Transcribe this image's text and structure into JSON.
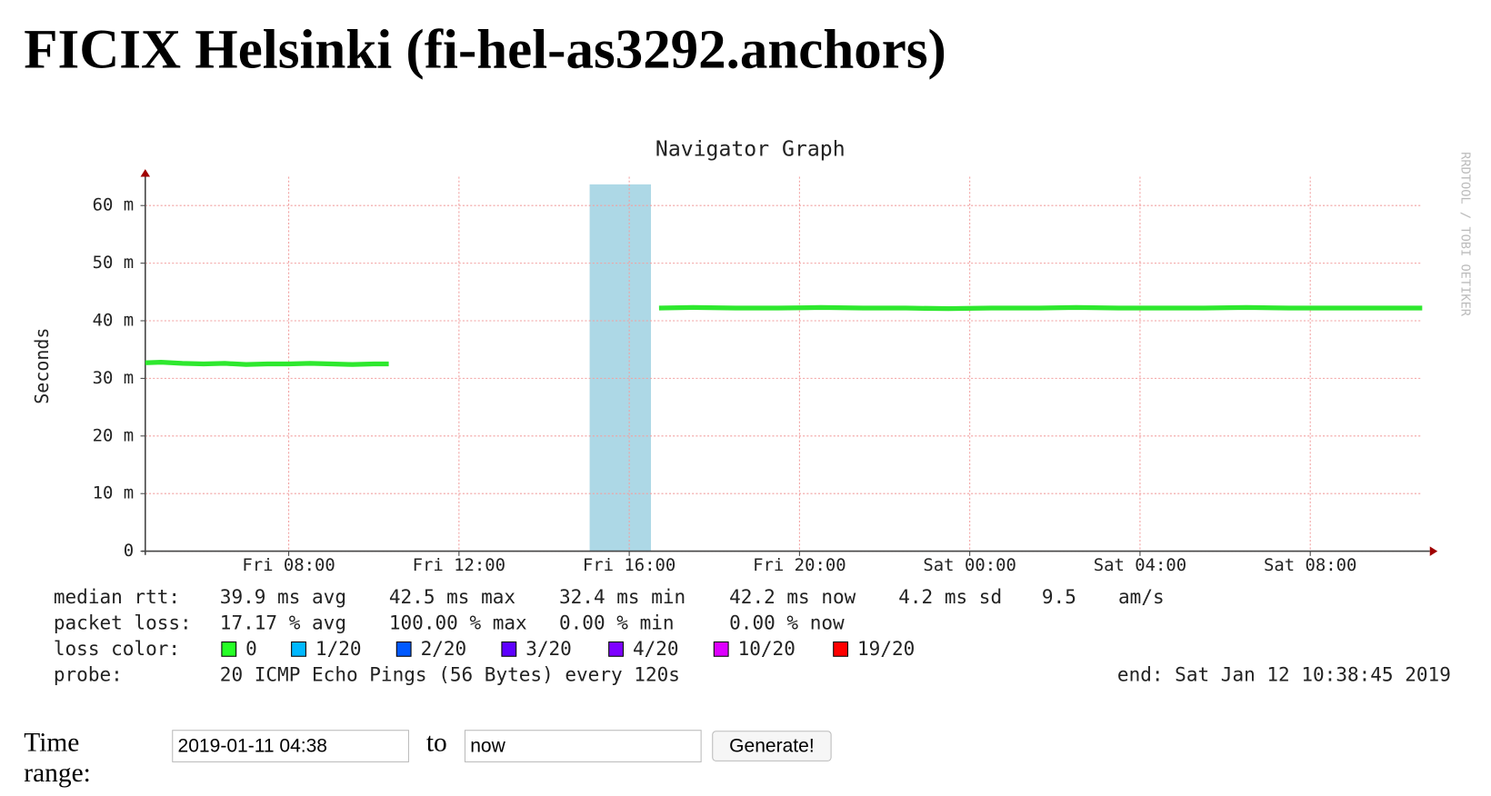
{
  "header": {
    "title": "FICIX Helsinki (fi-hel-as3292.anchors)"
  },
  "chart_data": {
    "type": "line",
    "title": "Navigator Graph",
    "y_label": "Seconds",
    "watermark": "RRDTOOL / TOBI OETIKER",
    "xlim": [
      4.63,
      34.63
    ],
    "xticks": [
      {
        "value": 8,
        "label": "Fri 08:00"
      },
      {
        "value": 12,
        "label": "Fri 12:00"
      },
      {
        "value": 16,
        "label": "Fri 16:00"
      },
      {
        "value": 20,
        "label": "Fri 20:00"
      },
      {
        "value": 24,
        "label": "Sat 00:00"
      },
      {
        "value": 28,
        "label": "Sat 04:00"
      },
      {
        "value": 32,
        "label": "Sat 08:00"
      }
    ],
    "ylim": [
      0,
      0.065
    ],
    "yticks": [
      0,
      {
        "value": 0.01,
        "label": "10 m"
      },
      {
        "value": 0.02,
        "label": "20 m"
      },
      {
        "value": 0.03,
        "label": "30 m"
      },
      {
        "value": 0.04,
        "label": "40 m"
      },
      {
        "value": 0.05,
        "label": "50 m"
      },
      {
        "value": 0.06,
        "label": "60 m"
      }
    ],
    "grid": true,
    "shaded": {
      "x": [
        15.07,
        16.51
      ],
      "color": "#add8e6"
    },
    "x": [
      4.63,
      5,
      5.5,
      6,
      6.5,
      7,
      7.5,
      8,
      8.5,
      9,
      9.5,
      10,
      10.35,
      13,
      16.7,
      17.5,
      18.5,
      19.5,
      20.5,
      21.5,
      22.5,
      23.5,
      24.5,
      25.5,
      26.5,
      27.5,
      28.5,
      29.5,
      30.5,
      31.5,
      32.5,
      33.5,
      34.63
    ],
    "series": [
      {
        "name": "median rtt",
        "color": "#2ee82e",
        "values": [
          0.0327,
          0.0328,
          0.0326,
          0.0325,
          0.0326,
          0.0324,
          0.0325,
          0.0325,
          0.0326,
          0.0325,
          0.0324,
          0.0325,
          0.0325,
          null,
          0.0422,
          0.0423,
          0.0422,
          0.0422,
          0.0423,
          0.0422,
          0.0422,
          0.0421,
          0.0422,
          0.0422,
          0.0423,
          0.0422,
          0.0422,
          0.0422,
          0.0423,
          0.0422,
          0.0422,
          0.0422,
          0.0422
        ]
      }
    ]
  },
  "legend": {
    "rows": [
      [
        "median rtt:",
        "39.9 ms avg",
        "42.5 ms max",
        "32.4 ms min",
        "42.2 ms now",
        "4.2 ms sd",
        "9.5",
        "am/s"
      ],
      [
        "packet loss:",
        "17.17 % avg",
        "100.00 % max",
        "0.00 % min",
        "0.00 % now"
      ]
    ],
    "loss_label": "loss color:",
    "loss_colors": [
      {
        "label": "0",
        "color": "#26ff26"
      },
      {
        "label": "1/20",
        "color": "#00b8ff"
      },
      {
        "label": "2/20",
        "color": "#0059ff"
      },
      {
        "label": "3/20",
        "color": "#5e00ff"
      },
      {
        "label": "4/20",
        "color": "#7e00ff"
      },
      {
        "label": "10/20",
        "color": "#dd00ff"
      },
      {
        "label": "19/20",
        "color": "#ff0000"
      }
    ],
    "probe_label": "probe:",
    "probe": "20 ICMP Echo Pings (56 Bytes) every 120s",
    "end": "end: Sat Jan 12 10:38:45 2019"
  },
  "form": {
    "label": "Time range:",
    "from": "2019-01-11 04:38",
    "to_label": "to",
    "to": "now",
    "button": "Generate!"
  }
}
